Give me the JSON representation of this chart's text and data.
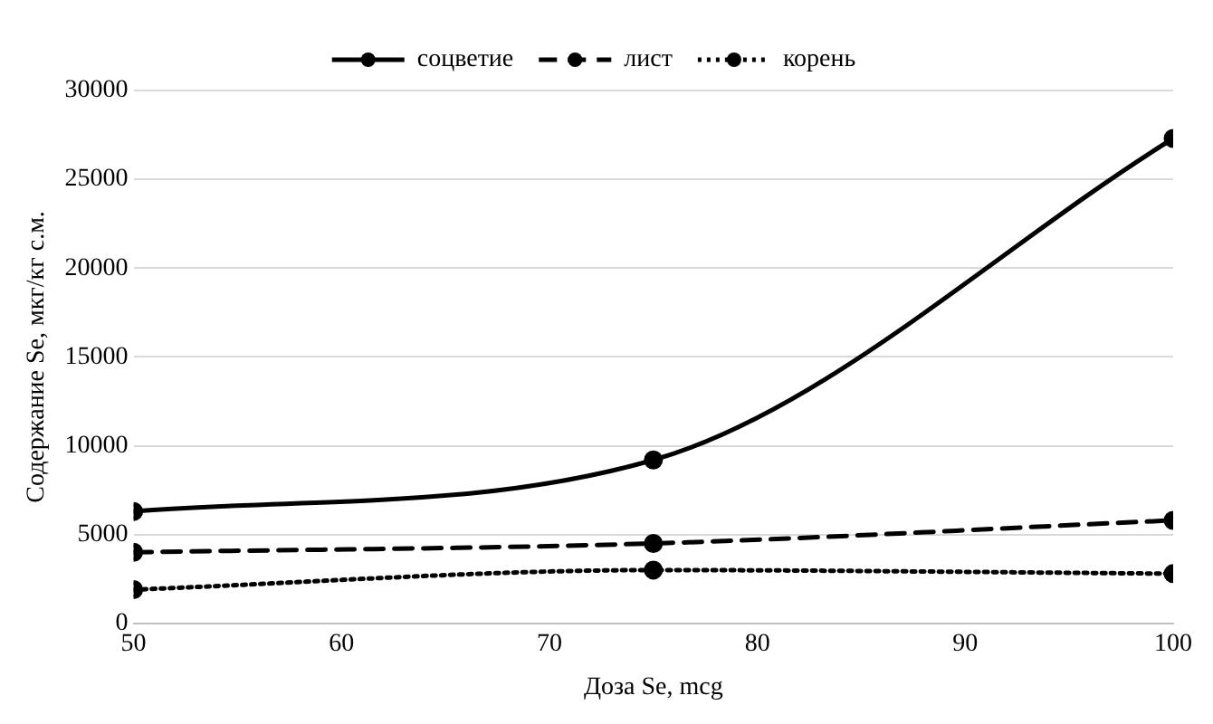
{
  "chart_data": {
    "type": "line",
    "xlabel": "Доза Se, mcg",
    "ylabel": "Содержание Se, мкг/кг с.м.",
    "x": [
      50,
      75,
      100
    ],
    "series": [
      {
        "name": "соцветие",
        "color": "#000000",
        "values": [
          6300,
          9200,
          27300
        ],
        "line_style": "solid"
      },
      {
        "name": "лист",
        "color": "#000000",
        "values": [
          4000,
          4500,
          5800
        ],
        "line_style": "dashed"
      },
      {
        "name": "корень",
        "color": "#000000",
        "values": [
          1900,
          3000,
          2800
        ],
        "line_style": "dotted"
      }
    ],
    "xlim": [
      50,
      100
    ],
    "xticks": [
      50,
      60,
      70,
      80,
      90,
      100
    ],
    "ylim": [
      0,
      30000
    ],
    "yticks": [
      0,
      5000,
      10000,
      15000,
      20000,
      25000,
      30000
    ],
    "grid": "y",
    "legend": "top",
    "marker": "circle"
  }
}
